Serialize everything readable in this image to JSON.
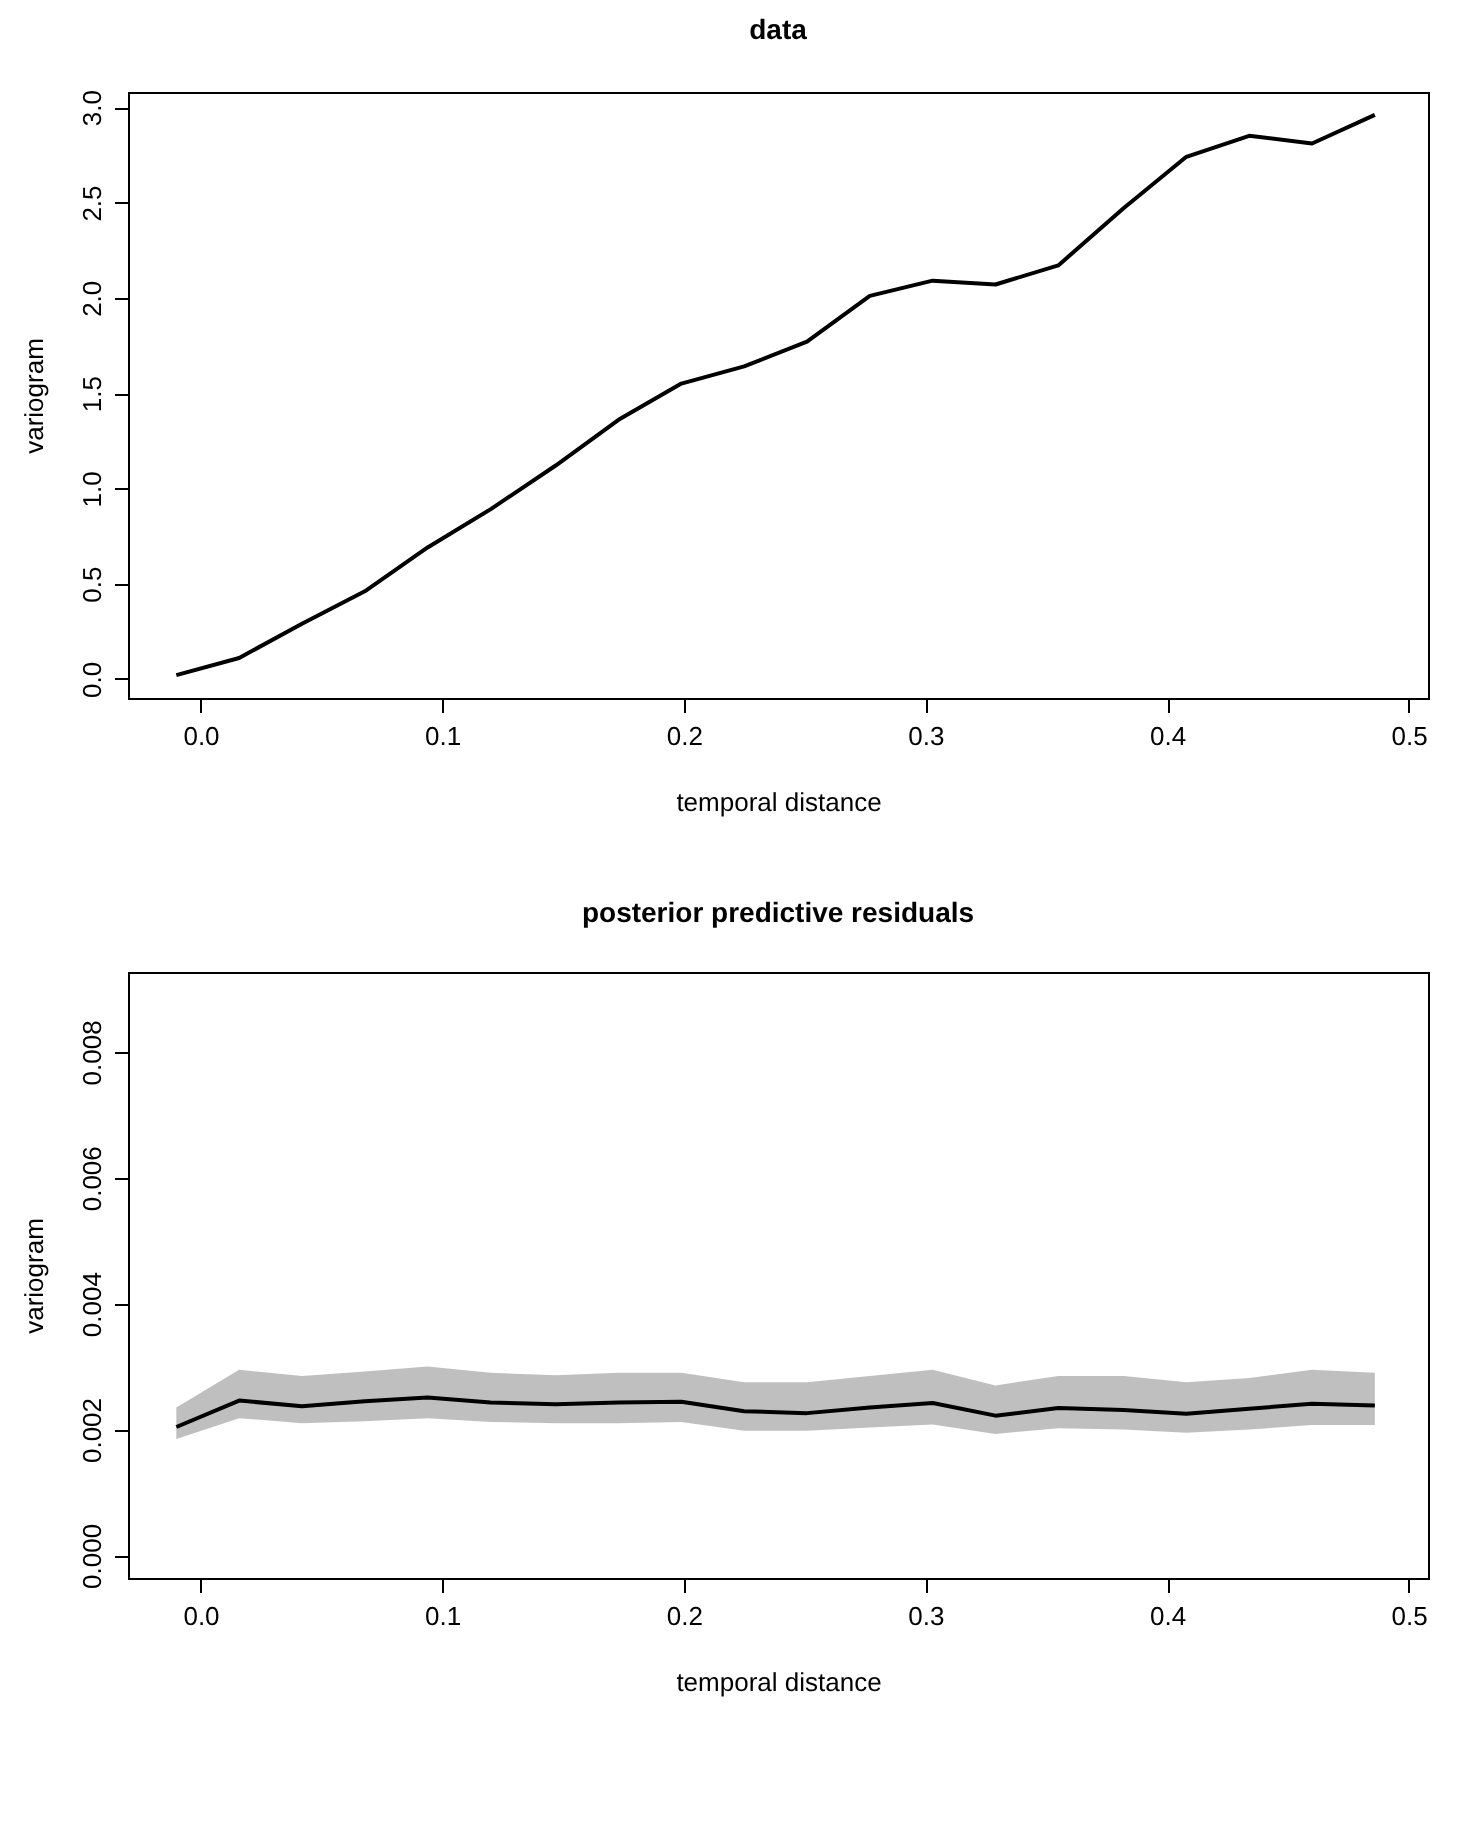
{
  "chart_data": [
    {
      "type": "line",
      "title": "data",
      "xlabel": "temporal distance",
      "ylabel": "variogram",
      "x": [
        -0.01,
        0.016,
        0.042,
        0.068,
        0.094,
        0.12,
        0.147,
        0.173,
        0.199,
        0.225,
        0.251,
        0.277,
        0.303,
        0.329,
        0.355,
        0.382,
        0.408,
        0.434,
        0.46,
        0.486
      ],
      "series": [
        {
          "color": "#000000",
          "values": [
            0.02,
            0.11,
            0.29,
            0.46,
            0.69,
            0.89,
            1.12,
            1.36,
            1.55,
            1.64,
            1.77,
            2.01,
            2.09,
            2.07,
            2.17,
            2.47,
            2.74,
            2.85,
            2.81,
            2.96
          ]
        }
      ],
      "xlim": [
        -0.03,
        0.508
      ],
      "ylim": [
        -0.1,
        3.08
      ],
      "xticks": [
        {
          "value": 0,
          "label": "0.0"
        },
        0.1,
        0.2,
        0.3,
        0.4,
        0.5
      ],
      "yticks": [
        {
          "value": 0,
          "label": "0.0"
        },
        0.5,
        {
          "value": 1,
          "label": "1.0"
        },
        1.5,
        {
          "value": 2,
          "label": "2.0"
        },
        2.5,
        {
          "value": 3,
          "label": "3.0"
        }
      ],
      "grid": false
    },
    {
      "type": "line",
      "title": "posterior predictive residuals",
      "xlabel": "temporal distance",
      "ylabel": "variogram",
      "x": [
        -0.01,
        0.016,
        0.042,
        0.068,
        0.094,
        0.12,
        0.147,
        0.173,
        0.199,
        0.225,
        0.251,
        0.277,
        0.303,
        0.329,
        0.355,
        0.382,
        0.408,
        0.434,
        0.46,
        0.486
      ],
      "series": [
        {
          "color": "#000000",
          "values": [
            0.00204,
            0.00246,
            0.00237,
            0.00245,
            0.00251,
            0.00243,
            0.0024,
            0.00243,
            0.00244,
            0.00229,
            0.00226,
            0.00235,
            0.00242,
            0.00222,
            0.00234,
            0.00231,
            0.00225,
            0.00233,
            0.00241,
            0.00238
          ],
          "lower": [
            0.00185,
            0.00218,
            0.0021,
            0.00213,
            0.00218,
            0.00212,
            0.0021,
            0.0021,
            0.00212,
            0.00198,
            0.00198,
            0.00203,
            0.00208,
            0.00193,
            0.00202,
            0.002,
            0.00195,
            0.002,
            0.00207,
            0.00207
          ],
          "upper": [
            0.00235,
            0.00295,
            0.00285,
            0.00292,
            0.003,
            0.0029,
            0.00286,
            0.0029,
            0.0029,
            0.00275,
            0.00275,
            0.00285,
            0.00295,
            0.0027,
            0.00285,
            0.00285,
            0.00275,
            0.00282,
            0.00295,
            0.0029
          ]
        }
      ],
      "xlim": [
        -0.03,
        0.508
      ],
      "ylim": [
        -0.00036,
        0.00927
      ],
      "xticks": [
        {
          "value": 0,
          "label": "0.0"
        },
        0.1,
        0.2,
        0.3,
        0.4,
        0.5
      ],
      "yticks": [
        {
          "value": 0,
          "label": "0.000"
        },
        0.002,
        0.004,
        0.006,
        0.008
      ],
      "grid": false
    }
  ]
}
